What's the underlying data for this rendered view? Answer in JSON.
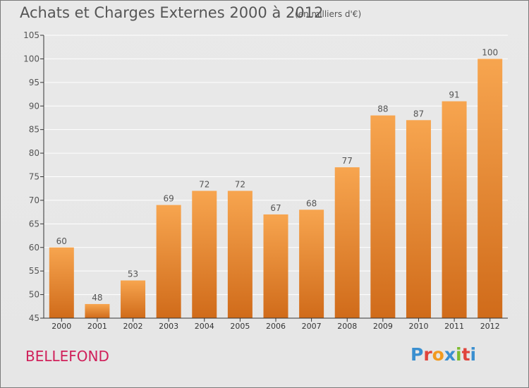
{
  "header": {
    "title": "Achats et Charges Externes 2000 à 2012",
    "subtitle": "(en milliers d'€)"
  },
  "footer": {
    "commune": "BELLEFOND",
    "logo": {
      "letters": [
        "P",
        "r",
        "o",
        "x",
        "i",
        "t",
        "i"
      ],
      "colors": [
        "#3a8fd0",
        "#e0443c",
        "#f29a1f",
        "#3a8fd0",
        "#7dbb2f",
        "#e0443c",
        "#3a8fd0"
      ]
    }
  },
  "colors": {
    "bar_top": "#f7a54f",
    "bar_bottom": "#d06b1a",
    "axis": "#333333",
    "grid": "#ffffff",
    "text": "#555555"
  },
  "chart_data": {
    "type": "bar",
    "categories": [
      "2000",
      "2001",
      "2002",
      "2003",
      "2004",
      "2005",
      "2006",
      "2007",
      "2008",
      "2009",
      "2010",
      "2011",
      "2012"
    ],
    "values": [
      60,
      48,
      53,
      69,
      72,
      72,
      67,
      68,
      77,
      88,
      87,
      91,
      100
    ],
    "data_labels": [
      "60",
      "48",
      "53",
      "69",
      "72",
      "72",
      "67",
      "68",
      "77",
      "88",
      "87",
      "91",
      "100"
    ],
    "ylim": [
      45,
      105
    ],
    "yticks": [
      45,
      50,
      55,
      60,
      65,
      70,
      75,
      80,
      85,
      90,
      95,
      100,
      105
    ],
    "title": "Achats et Charges Externes 2000 à 2012",
    "xlabel": "",
    "ylabel": "",
    "grid": true,
    "legend": "none"
  }
}
